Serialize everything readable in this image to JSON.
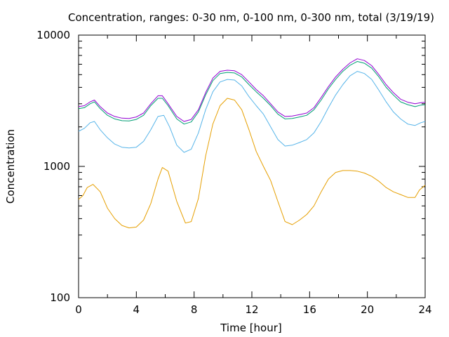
{
  "chart_data": {
    "type": "line",
    "title": "Concentration, ranges: 0-30 nm, 0-100 nm, 0-300 nm, total (3/19/19)",
    "xlabel": "Time [hour]",
    "ylabel": "Concentration",
    "xlim": [
      0,
      24
    ],
    "ylim": [
      100,
      10000
    ],
    "yscale": "log",
    "grid": false,
    "legend": "none",
    "x_ticks": [
      "0",
      "4",
      "8",
      "12",
      "16",
      "20",
      "24"
    ],
    "y_ticks": [
      "100",
      "1000",
      "10000"
    ],
    "series": [
      {
        "color": "#e69f00",
        "x": [
          0,
          0.3,
          0.6,
          1.0,
          1.5,
          2.0,
          2.5,
          3.0,
          3.5,
          4.0,
          4.5,
          5.0,
          5.5,
          5.8,
          6.2,
          6.8,
          7.4,
          7.8,
          8.3,
          8.8,
          9.3,
          9.8,
          10.3,
          10.8,
          11.3,
          11.8,
          12.3,
          12.8,
          13.3,
          13.8,
          14.3,
          14.8,
          15.3,
          15.8,
          16.3,
          16.8,
          17.3,
          17.8,
          18.3,
          18.8,
          19.3,
          19.8,
          20.3,
          20.8,
          21.3,
          21.8,
          22.3,
          22.8,
          23.3,
          23.6,
          24.0
        ],
        "y": [
          560,
          600,
          690,
          730,
          640,
          480,
          400,
          355,
          340,
          345,
          390,
          520,
          800,
          980,
          920,
          540,
          370,
          380,
          570,
          1200,
          2100,
          2900,
          3300,
          3200,
          2700,
          1900,
          1300,
          1000,
          780,
          540,
          380,
          360,
          390,
          430,
          500,
          640,
          800,
          900,
          930,
          930,
          920,
          890,
          840,
          770,
          690,
          640,
          610,
          580,
          580,
          660,
          720
        ]
      },
      {
        "color": "#56b4e9",
        "x": [
          0,
          0.4,
          0.8,
          1.1,
          1.5,
          2.0,
          2.5,
          3.0,
          3.5,
          4.0,
          4.5,
          5.0,
          5.5,
          5.9,
          6.3,
          6.8,
          7.3,
          7.8,
          8.3,
          8.8,
          9.3,
          9.8,
          10.3,
          10.8,
          11.3,
          11.8,
          12.3,
          12.8,
          13.3,
          13.8,
          14.3,
          14.8,
          15.3,
          15.8,
          16.3,
          16.8,
          17.3,
          17.8,
          18.3,
          18.8,
          19.3,
          19.8,
          20.3,
          20.8,
          21.3,
          21.8,
          22.3,
          22.8,
          23.3,
          23.7,
          24.0
        ],
        "y": [
          1850,
          1950,
          2150,
          2200,
          1900,
          1650,
          1480,
          1400,
          1380,
          1400,
          1550,
          1900,
          2400,
          2450,
          2000,
          1450,
          1280,
          1350,
          1800,
          2700,
          3700,
          4400,
          4600,
          4550,
          4100,
          3400,
          2900,
          2500,
          2000,
          1600,
          1430,
          1450,
          1520,
          1600,
          1800,
          2200,
          2800,
          3500,
          4200,
          4900,
          5300,
          5100,
          4600,
          3800,
          3100,
          2600,
          2300,
          2100,
          2050,
          2150,
          2200
        ]
      },
      {
        "color": "#009e73",
        "x": [
          0,
          0.4,
          0.8,
          1.1,
          1.5,
          2.0,
          2.5,
          3.0,
          3.5,
          4.0,
          4.5,
          5.0,
          5.5,
          5.8,
          6.2,
          6.8,
          7.3,
          7.8,
          8.3,
          8.8,
          9.3,
          9.8,
          10.3,
          10.8,
          11.3,
          11.8,
          12.3,
          12.8,
          13.3,
          13.8,
          14.3,
          14.8,
          15.3,
          15.8,
          16.3,
          16.8,
          17.3,
          17.8,
          18.3,
          18.8,
          19.3,
          19.8,
          20.3,
          20.8,
          21.3,
          21.8,
          22.3,
          22.8,
          23.3,
          23.7,
          24.0
        ],
        "y": [
          2750,
          2800,
          3000,
          3100,
          2750,
          2450,
          2300,
          2230,
          2220,
          2280,
          2450,
          2900,
          3300,
          3300,
          2900,
          2300,
          2100,
          2180,
          2600,
          3500,
          4500,
          5100,
          5200,
          5150,
          4800,
          4200,
          3700,
          3300,
          2900,
          2500,
          2300,
          2320,
          2380,
          2450,
          2700,
          3200,
          3900,
          4600,
          5300,
          5900,
          6300,
          6100,
          5600,
          4800,
          4000,
          3500,
          3100,
          2950,
          2850,
          2930,
          2950
        ]
      },
      {
        "color": "#9400d3",
        "x": [
          0,
          0.4,
          0.8,
          1.1,
          1.5,
          2.0,
          2.5,
          3.0,
          3.5,
          4.0,
          4.5,
          5.0,
          5.5,
          5.8,
          6.2,
          6.8,
          7.3,
          7.8,
          8.3,
          8.8,
          9.3,
          9.8,
          10.3,
          10.8,
          11.3,
          11.8,
          12.3,
          12.8,
          13.3,
          13.8,
          14.3,
          14.8,
          15.3,
          15.8,
          16.3,
          16.8,
          17.3,
          17.8,
          18.3,
          18.8,
          19.3,
          19.8,
          20.3,
          20.8,
          21.3,
          21.8,
          22.3,
          22.8,
          23.3,
          23.7,
          24.0
        ],
        "y": [
          2850,
          2900,
          3100,
          3200,
          2850,
          2550,
          2400,
          2330,
          2320,
          2380,
          2550,
          3000,
          3450,
          3450,
          3000,
          2400,
          2200,
          2280,
          2700,
          3650,
          4700,
          5300,
          5400,
          5350,
          5000,
          4400,
          3850,
          3450,
          3000,
          2600,
          2400,
          2420,
          2480,
          2550,
          2800,
          3350,
          4050,
          4800,
          5500,
          6150,
          6600,
          6400,
          5850,
          5000,
          4200,
          3650,
          3250,
          3080,
          3000,
          3060,
          3080
        ]
      }
    ]
  }
}
